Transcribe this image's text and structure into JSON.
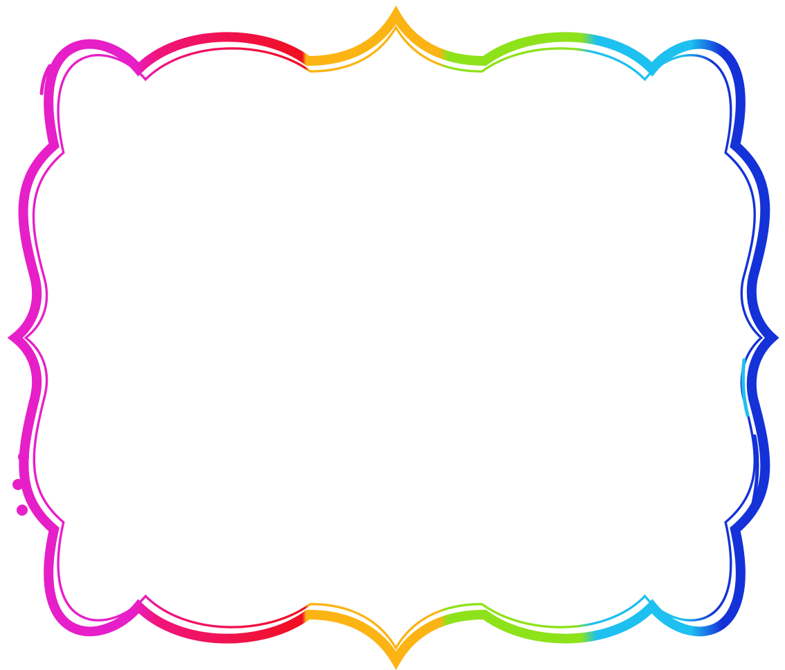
{
  "frame": {
    "style": "scalloped rainbow bracket frame",
    "colors": {
      "magenta": "#e61fc8",
      "pink": "#f0147c",
      "red": "#f01020",
      "orange": "#fbb414",
      "green": "#8ee21a",
      "cyan": "#1ec0f0",
      "blue": "#1432d8"
    },
    "decorations": [
      "dots-left",
      "dashes-top-left",
      "dashes-right"
    ]
  }
}
